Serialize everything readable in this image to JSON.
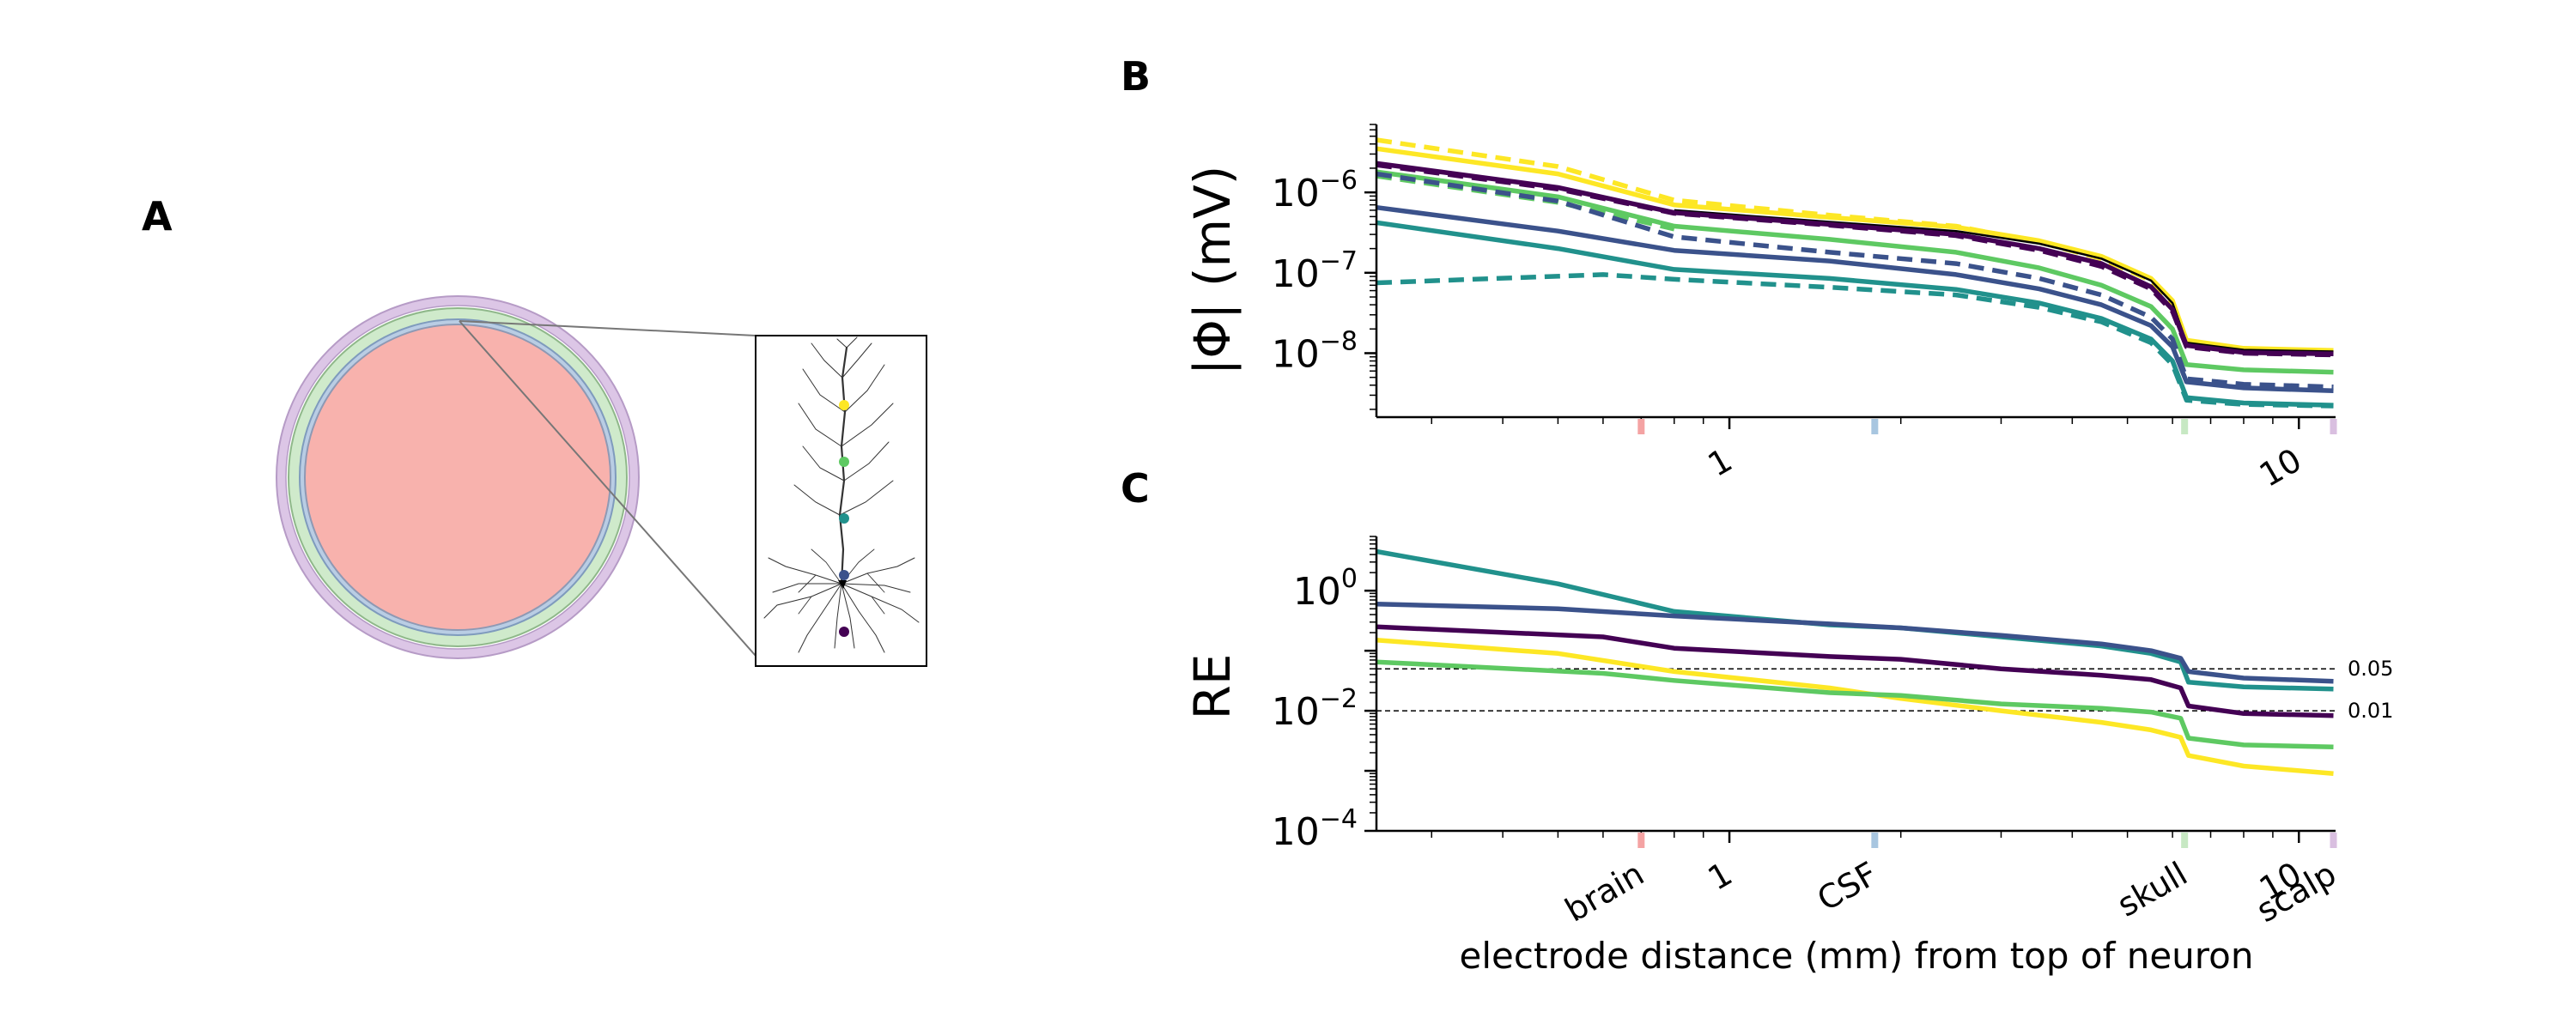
{
  "panels": {
    "a": "A",
    "b": "B",
    "c": "C"
  },
  "region_labels": [
    "brain",
    "CSF",
    "skull",
    "scalp"
  ],
  "region_colors": [
    "#f4a3a3",
    "#a8c6e0",
    "#c7e8c3",
    "#d9bfe0"
  ],
  "series_colors": [
    "#fde725",
    "#5ec962",
    "#21918c",
    "#3b528b",
    "#440154"
  ],
  "chart_data": [
    {
      "type": "line",
      "panel": "B",
      "ylabel": "|Φ| (mV)",
      "xscale": "log",
      "yscale": "log",
      "xlim": [
        0.24,
        11.6
      ],
      "ylim": [
        1.6e-09,
        7e-06
      ],
      "xticks": [
        1,
        10
      ],
      "xticklabels": [
        "1",
        "10"
      ],
      "yticks": [
        1e-08,
        1e-07,
        1e-06
      ],
      "yticklabels": [
        [
          "10",
          "−8"
        ],
        [
          "10",
          "−7"
        ],
        [
          "10",
          "−6"
        ]
      ],
      "boundaries": [
        0.7,
        1.8,
        6.3,
        11.5
      ],
      "series": [
        {
          "color": "#fde725",
          "style": "solid",
          "points": [
            [
              0.24,
              3.5e-06
            ],
            [
              0.5,
              1.7e-06
            ],
            [
              0.8,
              7e-07
            ],
            [
              1.5,
              4.9e-07
            ],
            [
              2.5,
              3.7e-07
            ],
            [
              3.5,
              2.5e-07
            ],
            [
              4.5,
              1.6e-07
            ],
            [
              5.5,
              8.5e-08
            ],
            [
              6.0,
              4.5e-08
            ],
            [
              6.35,
              1.45e-08
            ],
            [
              8,
              1.15e-08
            ],
            [
              11.5,
              1.08e-08
            ]
          ]
        },
        {
          "color": "#fde725",
          "style": "dashed",
          "points": [
            [
              0.24,
              4.5e-06
            ],
            [
              0.5,
              2.1e-06
            ],
            [
              0.8,
              8e-07
            ],
            [
              1.5,
              5.2e-07
            ],
            [
              2.5,
              3.8e-07
            ],
            [
              3.5,
              2.4e-07
            ],
            [
              4.5,
              1.5e-07
            ],
            [
              5.5,
              8e-08
            ],
            [
              6.0,
              4.2e-08
            ],
            [
              6.35,
              1.3e-08
            ],
            [
              8,
              1.1e-08
            ],
            [
              11.5,
              1e-08
            ]
          ]
        },
        {
          "color": "#000000",
          "style": "solid",
          "width": 2.5,
          "points": [
            [
              0.8,
              6e-07
            ],
            [
              1.5,
              4.3e-07
            ],
            [
              2.5,
              3.3e-07
            ],
            [
              3.5,
              2.3e-07
            ],
            [
              4.5,
              1.5e-07
            ],
            [
              5.5,
              8e-08
            ],
            [
              6.0,
              4.2e-08
            ],
            [
              6.35,
              1.35e-08
            ],
            [
              8,
              1.1e-08
            ],
            [
              11.5,
              1.05e-08
            ]
          ]
        },
        {
          "color": "#440154",
          "style": "dashed",
          "points": [
            [
              0.24,
              2.2e-06
            ],
            [
              0.5,
              1.1e-06
            ],
            [
              0.8,
              5.5e-07
            ],
            [
              1.5,
              3.9e-07
            ],
            [
              2.5,
              2.9e-07
            ],
            [
              3.5,
              1.9e-07
            ],
            [
              4.5,
              1.2e-07
            ],
            [
              5.5,
              6.3e-08
            ],
            [
              6.0,
              3.3e-08
            ],
            [
              6.35,
              1.2e-08
            ],
            [
              8,
              1e-08
            ],
            [
              11.5,
              9.5e-09
            ]
          ]
        },
        {
          "color": "#440154",
          "style": "solid",
          "points": [
            [
              0.24,
              2.3e-06
            ],
            [
              0.5,
              1.15e-06
            ],
            [
              0.8,
              5.6e-07
            ],
            [
              1.5,
              4e-07
            ],
            [
              2.5,
              3e-07
            ],
            [
              3.5,
              2e-07
            ],
            [
              4.5,
              1.3e-07
            ],
            [
              5.5,
              6.7e-08
            ],
            [
              6.0,
              3.5e-08
            ],
            [
              6.35,
              1.25e-08
            ],
            [
              8,
              1.02e-08
            ],
            [
              11.5,
              9.8e-09
            ]
          ]
        },
        {
          "color": "#5ec962",
          "style": "solid",
          "points": [
            [
              0.24,
              1.8e-06
            ],
            [
              0.5,
              8.8e-07
            ],
            [
              0.8,
              3.8e-07
            ],
            [
              1.5,
              2.6e-07
            ],
            [
              2.5,
              1.8e-07
            ],
            [
              3.5,
              1.15e-07
            ],
            [
              4.5,
              7e-08
            ],
            [
              5.5,
              3.8e-08
            ],
            [
              6.0,
              2e-08
            ],
            [
              6.35,
              7.2e-09
            ],
            [
              8,
              6.2e-09
            ],
            [
              11.5,
              5.8e-09
            ]
          ]
        },
        {
          "color": "#5ec962",
          "style": "dashed",
          "points": [
            [
              0.24,
              1.6e-06
            ],
            [
              0.5,
              7.5e-07
            ],
            [
              0.8,
              3.5e-07
            ]
          ]
        },
        {
          "color": "#3b528b",
          "style": "dashed",
          "points": [
            [
              0.24,
              1.7e-06
            ],
            [
              0.5,
              7.8e-07
            ],
            [
              0.8,
              2.8e-07
            ],
            [
              1.5,
              1.8e-07
            ],
            [
              2.5,
              1.3e-07
            ],
            [
              3.5,
              8.5e-08
            ],
            [
              4.5,
              5.3e-08
            ],
            [
              5.5,
              2.8e-08
            ],
            [
              6.0,
              1.5e-08
            ],
            [
              6.35,
              4.8e-09
            ],
            [
              8,
              4.1e-09
            ],
            [
              11.5,
              3.8e-09
            ]
          ]
        },
        {
          "color": "#3b528b",
          "style": "solid",
          "points": [
            [
              0.24,
              6.5e-07
            ],
            [
              0.5,
              3.3e-07
            ],
            [
              0.8,
              1.9e-07
            ],
            [
              1.5,
              1.4e-07
            ],
            [
              2.5,
              9.5e-08
            ],
            [
              3.5,
              6.3e-08
            ],
            [
              4.5,
              4e-08
            ],
            [
              5.5,
              2.2e-08
            ],
            [
              6.0,
              1.2e-08
            ],
            [
              6.35,
              4.4e-09
            ],
            [
              8,
              3.7e-09
            ],
            [
              11.5,
              3.4e-09
            ]
          ]
        },
        {
          "color": "#21918c",
          "style": "solid",
          "points": [
            [
              0.24,
              4.2e-07
            ],
            [
              0.5,
              2e-07
            ],
            [
              0.8,
              1.1e-07
            ],
            [
              1.5,
              8.5e-08
            ],
            [
              2.5,
              6.2e-08
            ],
            [
              3.5,
              4.2e-08
            ],
            [
              4.5,
              2.7e-08
            ],
            [
              5.5,
              1.5e-08
            ],
            [
              6.0,
              8e-09
            ],
            [
              6.35,
              2.8e-09
            ],
            [
              8,
              2.4e-09
            ],
            [
              11.5,
              2.25e-09
            ]
          ]
        },
        {
          "color": "#21918c",
          "style": "dashed",
          "points": [
            [
              0.24,
              7.5e-08
            ],
            [
              0.6,
              9.5e-08
            ],
            [
              0.8,
              8.3e-08
            ],
            [
              1.5,
              6.6e-08
            ],
            [
              2.5,
              5.3e-08
            ],
            [
              3.5,
              3.7e-08
            ],
            [
              4.5,
              2.45e-08
            ],
            [
              5.5,
              1.35e-08
            ],
            [
              6.0,
              7.2e-09
            ],
            [
              6.35,
              2.6e-09
            ],
            [
              8,
              2.3e-09
            ],
            [
              11.5,
              2.2e-09
            ]
          ]
        }
      ]
    },
    {
      "type": "line",
      "panel": "C",
      "ylabel": "RE",
      "xlabel": "electrode distance (mm) from top of neuron",
      "xscale": "log",
      "yscale": "log",
      "xlim": [
        0.24,
        11.6
      ],
      "ylim": [
        0.0001,
        8
      ],
      "xticks": [
        0.7,
        1,
        1.8,
        6.3,
        10,
        11.5
      ],
      "xticklabels": [
        "brain",
        "1",
        "CSF",
        "skull",
        "10",
        "scalp"
      ],
      "yticks": [
        0.0001,
        0.01,
        1
      ],
      "yticklabels": [
        [
          "10",
          "−4"
        ],
        [
          "10",
          "−2"
        ],
        [
          "10",
          "0"
        ]
      ],
      "boundaries": [
        0.7,
        1.8,
        6.3,
        11.5
      ],
      "hlines": [
        {
          "y": 0.05,
          "label": "0.05"
        },
        {
          "y": 0.01,
          "label": "0.01"
        }
      ],
      "series": [
        {
          "color": "#21918c",
          "style": "solid",
          "points": [
            [
              0.24,
              4.5
            ],
            [
              0.5,
              1.3
            ],
            [
              0.8,
              0.45
            ],
            [
              1.5,
              0.27
            ],
            [
              2.0,
              0.24
            ],
            [
              3.0,
              0.17
            ],
            [
              4.5,
              0.12
            ],
            [
              5.5,
              0.09
            ],
            [
              6.2,
              0.065
            ],
            [
              6.4,
              0.03
            ],
            [
              8,
              0.025
            ],
            [
              11.5,
              0.023
            ]
          ]
        },
        {
          "color": "#3b528b",
          "style": "solid",
          "points": [
            [
              0.24,
              0.6
            ],
            [
              0.5,
              0.5
            ],
            [
              0.8,
              0.38
            ],
            [
              1.5,
              0.28
            ],
            [
              2.0,
              0.24
            ],
            [
              3.0,
              0.18
            ],
            [
              4.5,
              0.13
            ],
            [
              5.5,
              0.1
            ],
            [
              6.2,
              0.075
            ],
            [
              6.4,
              0.045
            ],
            [
              8,
              0.035
            ],
            [
              11.5,
              0.031
            ]
          ]
        },
        {
          "color": "#440154",
          "style": "solid",
          "points": [
            [
              0.24,
              0.25
            ],
            [
              0.6,
              0.17
            ],
            [
              0.8,
              0.11
            ],
            [
              1.5,
              0.08
            ],
            [
              2.0,
              0.072
            ],
            [
              3.0,
              0.05
            ],
            [
              4.5,
              0.039
            ],
            [
              5.5,
              0.033
            ],
            [
              6.2,
              0.024
            ],
            [
              6.4,
              0.012
            ],
            [
              8,
              0.009
            ],
            [
              11.5,
              0.0083
            ]
          ]
        },
        {
          "color": "#fde725",
          "style": "solid",
          "points": [
            [
              0.24,
              0.15
            ],
            [
              0.5,
              0.09
            ],
            [
              0.8,
              0.045
            ],
            [
              1.5,
              0.024
            ],
            [
              2.0,
              0.016
            ],
            [
              3.0,
              0.01
            ],
            [
              4.5,
              0.0064
            ],
            [
              5.5,
              0.0048
            ],
            [
              6.2,
              0.0036
            ],
            [
              6.4,
              0.0018
            ],
            [
              8,
              0.0012
            ],
            [
              11.5,
              0.0009
            ]
          ]
        },
        {
          "color": "#5ec962",
          "style": "solid",
          "points": [
            [
              0.24,
              0.065
            ],
            [
              0.6,
              0.042
            ],
            [
              0.8,
              0.032
            ],
            [
              1.5,
              0.02
            ],
            [
              2.0,
              0.018
            ],
            [
              3.0,
              0.013
            ],
            [
              4.5,
              0.011
            ],
            [
              5.5,
              0.0095
            ],
            [
              6.2,
              0.0075
            ],
            [
              6.4,
              0.0035
            ],
            [
              8,
              0.0027
            ],
            [
              11.5,
              0.0025
            ]
          ]
        }
      ]
    }
  ]
}
